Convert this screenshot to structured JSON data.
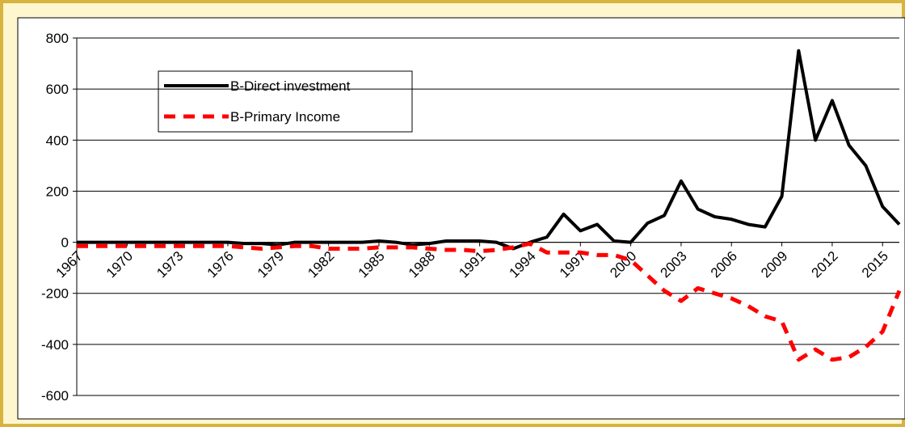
{
  "chart_data": {
    "type": "line",
    "x": [
      1967,
      1968,
      1969,
      1970,
      1971,
      1972,
      1973,
      1974,
      1975,
      1976,
      1977,
      1978,
      1979,
      1980,
      1981,
      1982,
      1983,
      1984,
      1985,
      1986,
      1987,
      1988,
      1989,
      1990,
      1991,
      1992,
      1993,
      1994,
      1995,
      1996,
      1997,
      1998,
      1999,
      2000,
      2001,
      2002,
      2003,
      2004,
      2005,
      2006,
      2007,
      2008,
      2009,
      2010,
      2011,
      2012,
      2013,
      2014,
      2015,
      2016
    ],
    "series": [
      {
        "name": "B-Direct investment",
        "color": "#000000",
        "dash": false,
        "values": [
          0,
          0,
          0,
          0,
          0,
          0,
          0,
          0,
          0,
          0,
          -5,
          -5,
          -10,
          0,
          0,
          0,
          0,
          0,
          5,
          0,
          -10,
          -5,
          5,
          5,
          5,
          0,
          -25,
          0,
          20,
          110,
          45,
          70,
          5,
          0,
          75,
          105,
          240,
          130,
          100,
          90,
          70,
          60,
          180,
          750,
          400,
          555,
          380,
          300,
          140,
          70
        ]
      },
      {
        "name": "B-Primary Income",
        "color": "#ff0000",
        "dash": true,
        "values": [
          -15,
          -15,
          -15,
          -15,
          -15,
          -15,
          -15,
          -15,
          -15,
          -15,
          -20,
          -25,
          -20,
          -15,
          -15,
          -25,
          -25,
          -25,
          -20,
          -20,
          -20,
          -25,
          -30,
          -30,
          -35,
          -30,
          -20,
          -5,
          -40,
          -40,
          -40,
          -50,
          -50,
          -70,
          -130,
          -190,
          -230,
          -180,
          -200,
          -220,
          -250,
          -290,
          -310,
          -460,
          -420,
          -460,
          -450,
          -410,
          -350,
          -190
        ]
      }
    ],
    "xlim": [
      1967,
      2016
    ],
    "xticks": [
      1967,
      1970,
      1973,
      1976,
      1979,
      1982,
      1985,
      1988,
      1991,
      1994,
      1997,
      2000,
      2003,
      2006,
      2009,
      2012,
      2015
    ],
    "ylim": [
      -600,
      800
    ],
    "yticks": [
      -600,
      -400,
      -200,
      0,
      200,
      400,
      600,
      800
    ],
    "grid": true
  }
}
